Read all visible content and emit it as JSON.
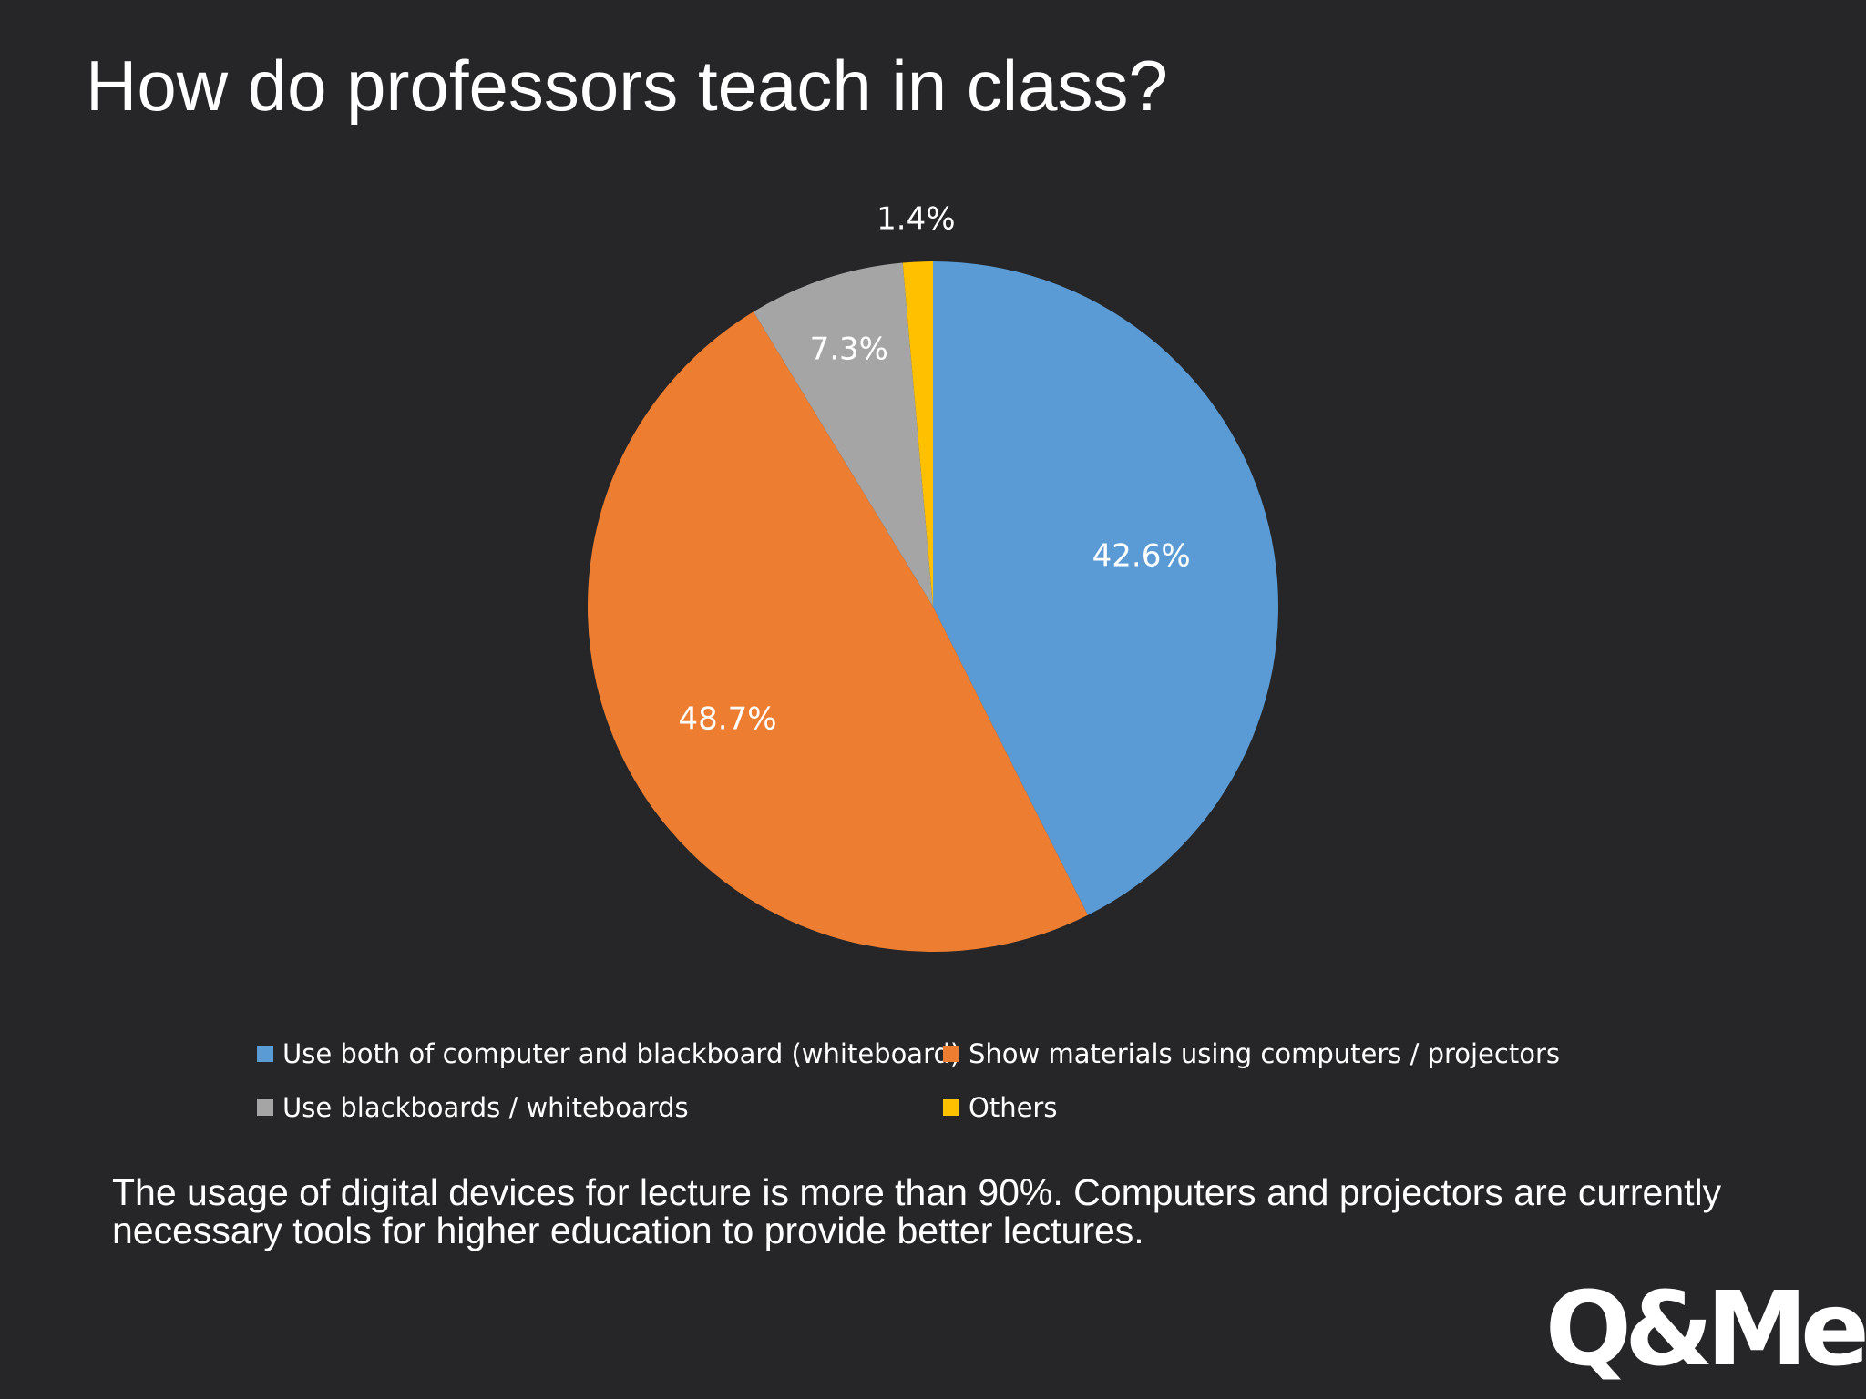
{
  "slide": {
    "title": "How do professors teach in class?",
    "caption": "The usage of digital devices for lecture is more than 90%. Computers and projectors are currently necessary tools for higher education to provide better lectures.",
    "logo": "Q&Me"
  },
  "chart_data": {
    "type": "pie",
    "title": "",
    "legend_position": "bottom",
    "categories": [
      "Use both of computer and blackboard (whiteboard)",
      "Show materials using computers / projectors",
      "Use blackboards / whiteboards",
      "Others"
    ],
    "values": [
      42.6,
      48.7,
      7.3,
      1.4
    ],
    "data_labels": [
      "42.6%",
      "48.7%",
      "7.3%",
      "1.4%"
    ],
    "colors": [
      "#5b9bd5",
      "#ed7d31",
      "#a5a5a5",
      "#ffc000"
    ],
    "start_angle": "12 o'clock",
    "direction": "clockwise"
  }
}
